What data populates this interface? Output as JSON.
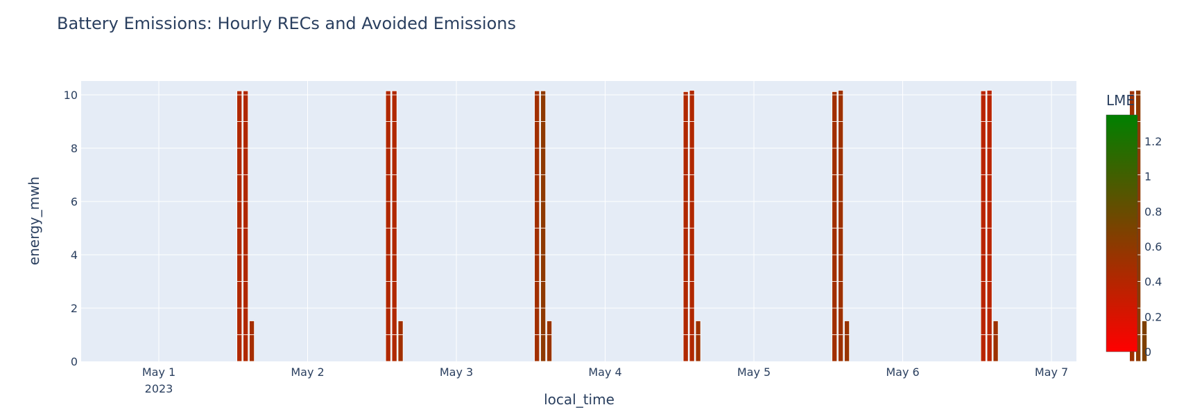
{
  "chart_data": {
    "type": "bar",
    "title": "Battery Emissions: Hourly RECs and Avoided Emissions",
    "xlabel": "local_time",
    "ylabel": "energy_mwh",
    "ylim": [
      0,
      10.5
    ],
    "y_ticks": [
      "0",
      "2",
      "4",
      "6",
      "8",
      "10"
    ],
    "x_ticks": [
      {
        "label": "May 1",
        "sub": "2023"
      },
      {
        "label": "May 2",
        "sub": ""
      },
      {
        "label": "May 3",
        "sub": ""
      },
      {
        "label": "May 4",
        "sub": ""
      },
      {
        "label": "May 5",
        "sub": ""
      },
      {
        "label": "May 6",
        "sub": ""
      },
      {
        "label": "May 7",
        "sub": ""
      }
    ],
    "grid": true,
    "colorbar": {
      "title": "LME",
      "range": [
        0,
        1.35
      ],
      "ticks": [
        "0",
        "0.2",
        "0.4",
        "0.6",
        "0.8",
        "1",
        "1.2"
      ],
      "colors": [
        "#ff0000",
        "#008000"
      ]
    },
    "days": [
      {
        "bars": [
          {
            "hour": 13,
            "value": 10.15,
            "lme": 0.42
          },
          {
            "hour": 14,
            "value": 10.15,
            "lme": 0.42
          },
          {
            "hour": 15,
            "value": 1.52,
            "lme": 0.48
          }
        ]
      },
      {
        "bars": [
          {
            "hour": 13,
            "value": 10.15,
            "lme": 0.42
          },
          {
            "hour": 14,
            "value": 10.15,
            "lme": 0.42
          },
          {
            "hour": 15,
            "value": 1.52,
            "lme": 0.5
          }
        ]
      },
      {
        "bars": [
          {
            "hour": 13,
            "value": 10.15,
            "lme": 0.5
          },
          {
            "hour": 14,
            "value": 10.15,
            "lme": 0.6
          },
          {
            "hour": 15,
            "value": 1.52,
            "lme": 0.55
          }
        ]
      },
      {
        "bars": [
          {
            "hour": 13,
            "value": 10.12,
            "lme": 0.42
          },
          {
            "hour": 14,
            "value": 10.17,
            "lme": 0.42
          },
          {
            "hour": 15,
            "value": 1.52,
            "lme": 0.52
          }
        ]
      },
      {
        "bars": [
          {
            "hour": 13,
            "value": 10.12,
            "lme": 0.5
          },
          {
            "hour": 14,
            "value": 10.17,
            "lme": 0.52
          },
          {
            "hour": 15,
            "value": 1.52,
            "lme": 0.55
          }
        ]
      },
      {
        "bars": [
          {
            "hour": 13,
            "value": 10.15,
            "lme": 0.38
          },
          {
            "hour": 14,
            "value": 10.17,
            "lme": 0.38
          },
          {
            "hour": 15,
            "value": 1.52,
            "lme": 0.52
          }
        ]
      },
      {
        "bars": [
          {
            "hour": 13,
            "value": 10.15,
            "lme": 0.52
          },
          {
            "hour": 14,
            "value": 10.17,
            "lme": 0.6
          },
          {
            "hour": 15,
            "value": 1.52,
            "lme": 0.68
          }
        ]
      }
    ]
  }
}
